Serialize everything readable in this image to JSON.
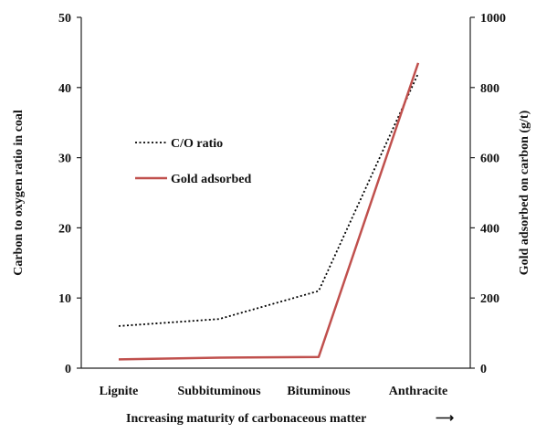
{
  "chart_data": {
    "type": "line",
    "title": "",
    "categories": [
      "Lignite",
      "Subbituminous",
      "Bituminous",
      "Anthracite"
    ],
    "xlabel": "Increasing maturity of carbonaceous matter",
    "xlabel_arrow": "⟶",
    "y_left": {
      "label": "Carbon to oxygen ratio in coal",
      "range": [
        0,
        50
      ],
      "ticks": [
        "0",
        "10",
        "20",
        "30",
        "40",
        "50"
      ]
    },
    "y_right": {
      "label": "Gold adsorbed on carbon (g/t)",
      "range": [
        0,
        1000
      ],
      "ticks": [
        "0",
        "200",
        "400",
        "600",
        "800",
        "1000"
      ]
    },
    "series": [
      {
        "name": "C/O ratio",
        "axis": "left",
        "style": "dotted",
        "color": "#000000",
        "values": [
          6,
          7,
          11,
          42
        ]
      },
      {
        "name": "Gold adsorbed",
        "axis": "right",
        "style": "solid",
        "color": "#c0504d",
        "values": [
          25,
          30,
          32,
          870
        ]
      }
    ],
    "grid": false,
    "legend_position": "upper-left"
  }
}
